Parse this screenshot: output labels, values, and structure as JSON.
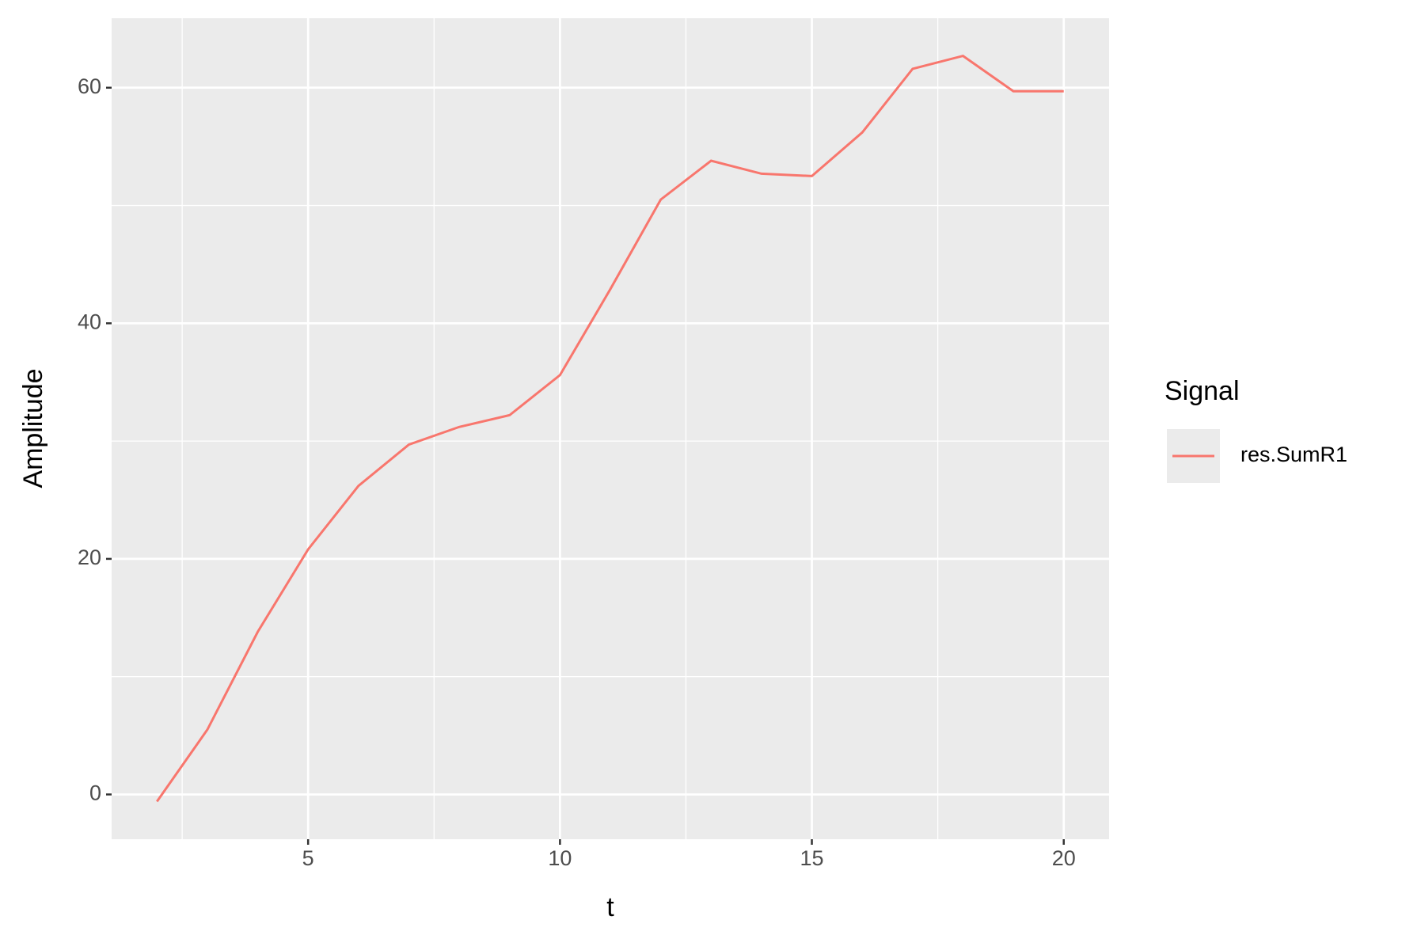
{
  "chart_data": {
    "type": "line",
    "x_label": "t",
    "y_label": "Amplitude",
    "x": [
      2,
      3,
      4,
      5,
      6,
      7,
      8,
      9,
      10,
      11,
      12,
      13,
      14,
      15,
      16,
      17,
      18,
      19,
      20
    ],
    "series": [
      {
        "name": "res.SumR1",
        "color": "#F8766D",
        "values": [
          -0.6,
          5.5,
          13.8,
          20.8,
          26.2,
          29.7,
          31.2,
          32.2,
          35.6,
          42.9,
          50.5,
          53.8,
          52.7,
          52.5,
          56.2,
          61.6,
          62.7,
          59.7,
          59.7
        ]
      }
    ],
    "xlim": [
      1.1,
      20.9
    ],
    "ylim": [
      -3.8,
      65.9
    ],
    "xticks": [
      5,
      10,
      15,
      20
    ],
    "yticks": [
      0,
      20,
      40,
      60
    ],
    "minor_xticks": [
      2.5,
      7.5,
      12.5,
      17.5
    ],
    "minor_yticks": [
      10,
      30,
      50
    ],
    "grid": true,
    "legend_title": "Signal",
    "legend_position": "right"
  }
}
